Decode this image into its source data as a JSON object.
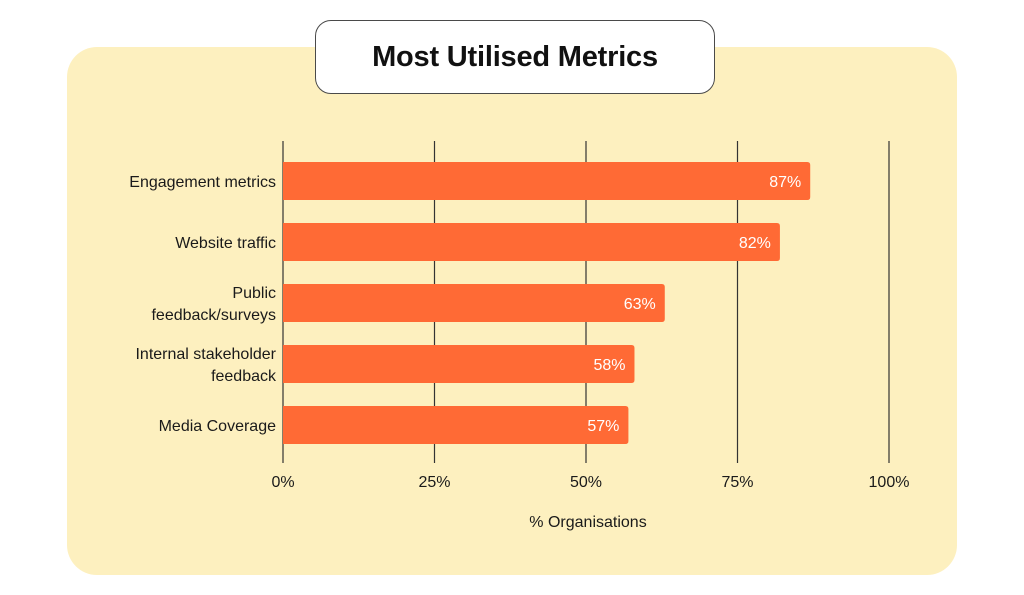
{
  "colors": {
    "panel": "#fdf0bf",
    "bar": "#ff6a35",
    "grid": "#333333"
  },
  "chart_data": {
    "type": "bar",
    "orientation": "horizontal",
    "title": "Most Utilised Metrics",
    "xlabel": "% Organisations",
    "ylabel": "",
    "xlim": [
      0,
      100
    ],
    "ticks": [
      "0%",
      "25%",
      "50%",
      "75%",
      "100%"
    ],
    "tick_values": [
      0,
      25,
      50,
      75,
      100
    ],
    "grid": true,
    "categories": [
      [
        "Engagement metrics"
      ],
      [
        "Website traffic"
      ],
      [
        "Public",
        "feedback/surveys"
      ],
      [
        "Internal stakeholder",
        "feedback"
      ],
      [
        "Media Coverage"
      ]
    ],
    "values": [
      87,
      82,
      63,
      58,
      57
    ],
    "value_labels": [
      "87%",
      "82%",
      "63%",
      "58%",
      "57%"
    ]
  }
}
